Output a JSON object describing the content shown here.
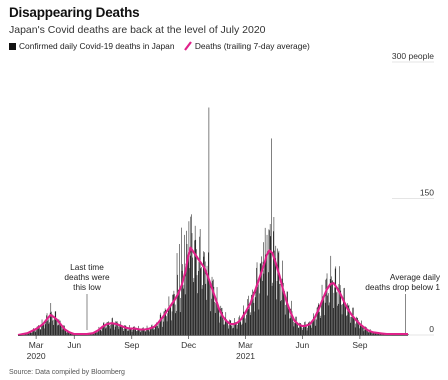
{
  "title": "Disappearing Deaths",
  "subtitle": "Japan's Covid deaths are back at the level of July 2020",
  "legend": {
    "bars": "Confirmed daily Covid-19 deaths in Japan",
    "line": "Deaths (trailing 7-day average)"
  },
  "source": "Source: Data compiled by Bloomberg",
  "colors": {
    "bars": "#1a1a1a",
    "line": "#e0218a",
    "axis": "#555555"
  },
  "chart_data": {
    "type": "bar",
    "ylim": [
      0,
      300
    ],
    "y_ticks": [
      {
        "value": 300,
        "label": "300 people"
      },
      {
        "value": 150,
        "label": "150"
      },
      {
        "value": 0,
        "label": "0"
      }
    ],
    "x_range_days": [
      0,
      624
    ],
    "x_ticks": [
      {
        "day": 29,
        "month": "Mar",
        "year": "2020"
      },
      {
        "day": 90,
        "month": "Jun",
        "year": ""
      },
      {
        "day": 182,
        "month": "Sep",
        "year": ""
      },
      {
        "day": 273,
        "month": "Dec",
        "year": ""
      },
      {
        "day": 364,
        "month": "Mar",
        "year": "2021"
      },
      {
        "day": 455,
        "month": "Jun",
        "year": ""
      },
      {
        "day": 547,
        "month": "Sep",
        "year": ""
      }
    ],
    "series": [
      {
        "name": "Deaths (trailing 7-day average)",
        "points": [
          [
            0,
            0
          ],
          [
            15,
            2
          ],
          [
            30,
            7
          ],
          [
            40,
            12
          ],
          [
            47,
            18
          ],
          [
            52,
            22
          ],
          [
            57,
            20
          ],
          [
            62,
            17
          ],
          [
            68,
            12
          ],
          [
            75,
            6
          ],
          [
            82,
            3
          ],
          [
            90,
            1
          ],
          [
            100,
            1
          ],
          [
            110,
            1
          ],
          [
            120,
            2
          ],
          [
            128,
            5
          ],
          [
            135,
            9
          ],
          [
            142,
            12
          ],
          [
            150,
            13
          ],
          [
            158,
            12
          ],
          [
            165,
            10
          ],
          [
            172,
            8
          ],
          [
            180,
            7
          ],
          [
            188,
            7
          ],
          [
            195,
            6
          ],
          [
            203,
            6
          ],
          [
            210,
            7
          ],
          [
            218,
            9
          ],
          [
            225,
            14
          ],
          [
            232,
            20
          ],
          [
            238,
            26
          ],
          [
            244,
            32
          ],
          [
            250,
            38
          ],
          [
            256,
            45
          ],
          [
            262,
            55
          ],
          [
            268,
            70
          ],
          [
            272,
            85
          ],
          [
            276,
            96
          ],
          [
            280,
            92
          ],
          [
            284,
            88
          ],
          [
            288,
            84
          ],
          [
            292,
            80
          ],
          [
            298,
            74
          ],
          [
            304,
            64
          ],
          [
            310,
            52
          ],
          [
            316,
            40
          ],
          [
            322,
            28
          ],
          [
            328,
            20
          ],
          [
            334,
            15
          ],
          [
            340,
            12
          ],
          [
            346,
            12
          ],
          [
            352,
            14
          ],
          [
            358,
            18
          ],
          [
            364,
            25
          ],
          [
            372,
            35
          ],
          [
            380,
            50
          ],
          [
            388,
            66
          ],
          [
            394,
            78
          ],
          [
            398,
            88
          ],
          [
            402,
            93
          ],
          [
            407,
            90
          ],
          [
            412,
            80
          ],
          [
            418,
            66
          ],
          [
            424,
            50
          ],
          [
            430,
            36
          ],
          [
            436,
            25
          ],
          [
            442,
            16
          ],
          [
            448,
            12
          ],
          [
            454,
            10
          ],
          [
            460,
            10
          ],
          [
            467,
            12
          ],
          [
            474,
            18
          ],
          [
            481,
            28
          ],
          [
            488,
            40
          ],
          [
            494,
            50
          ],
          [
            500,
            56
          ],
          [
            505,
            57
          ],
          [
            510,
            52
          ],
          [
            516,
            45
          ],
          [
            522,
            36
          ],
          [
            528,
            28
          ],
          [
            534,
            22
          ],
          [
            540,
            17
          ],
          [
            547,
            12
          ],
          [
            554,
            8
          ],
          [
            560,
            5
          ],
          [
            568,
            3
          ],
          [
            578,
            2
          ],
          [
            590,
            1
          ],
          [
            605,
            1
          ],
          [
            624,
            1
          ]
        ]
      },
      {
        "name": "Confirmed daily Covid-19 deaths in Japan",
        "spikes": [
          [
            254,
            90
          ],
          [
            258,
            100
          ],
          [
            261,
            118
          ],
          [
            266,
            110
          ],
          [
            270,
            100
          ],
          [
            273,
            125
          ],
          [
            276,
            130
          ],
          [
            278,
            112
          ],
          [
            283,
            120
          ],
          [
            290,
            108
          ],
          [
            296,
            92
          ],
          [
            302,
            76
          ],
          [
            305,
            250
          ],
          [
            392,
            102
          ],
          [
            398,
            110
          ],
          [
            403,
            122
          ],
          [
            405,
            216
          ],
          [
            408,
            114
          ],
          [
            412,
            98
          ]
        ]
      }
    ],
    "annotations": [
      {
        "text": [
          "Last time",
          "deaths were",
          "this low"
        ],
        "day": 120
      },
      {
        "text": [
          "Average daily",
          "deaths drop below 1"
        ],
        "day": 620
      }
    ]
  }
}
